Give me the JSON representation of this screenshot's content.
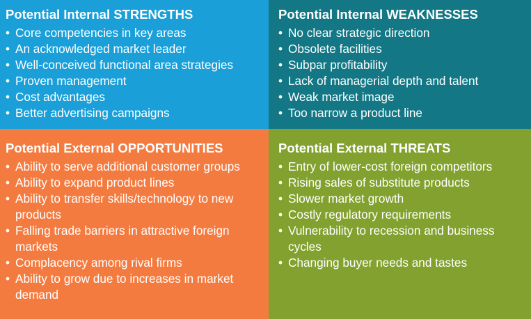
{
  "quadrants": {
    "strengths": {
      "color": "#1a9fd8",
      "title": "Potential Internal STRENGTHS",
      "items": [
        "Core competencies in key areas",
        "An acknowledged market leader",
        "Well-conceived functional area strategies",
        "Proven management",
        "Cost advantages",
        "Better advertising campaigns"
      ]
    },
    "weaknesses": {
      "color": "#137785",
      "title": "Potential Internal WEAKNESSES",
      "items": [
        "No clear strategic direction",
        "Obsolete facilities",
        "Subpar profitability",
        "Lack of managerial depth and talent",
        "Weak market image",
        "Too narrow a product line"
      ]
    },
    "opportunities": {
      "color": "#f47b40",
      "title": "Potential External OPPORTUNITIES",
      "items": [
        "Ability to serve additional customer groups",
        "Ability to expand product lines",
        "Ability to transfer skills/technology to new products",
        "Falling trade barriers in attractive foreign markets",
        "Complacency among rival firms",
        "Ability to grow due to increases in market demand"
      ]
    },
    "threats": {
      "color": "#82a12e",
      "title": "Potential External THREATS",
      "items": [
        "Entry of lower-cost foreign competitors",
        "Rising sales of substitute products",
        "Slower market growth",
        "Costly regulatory requirements",
        "Vulnerability to recession and business cycles",
        "Changing buyer needs and tastes"
      ]
    }
  }
}
